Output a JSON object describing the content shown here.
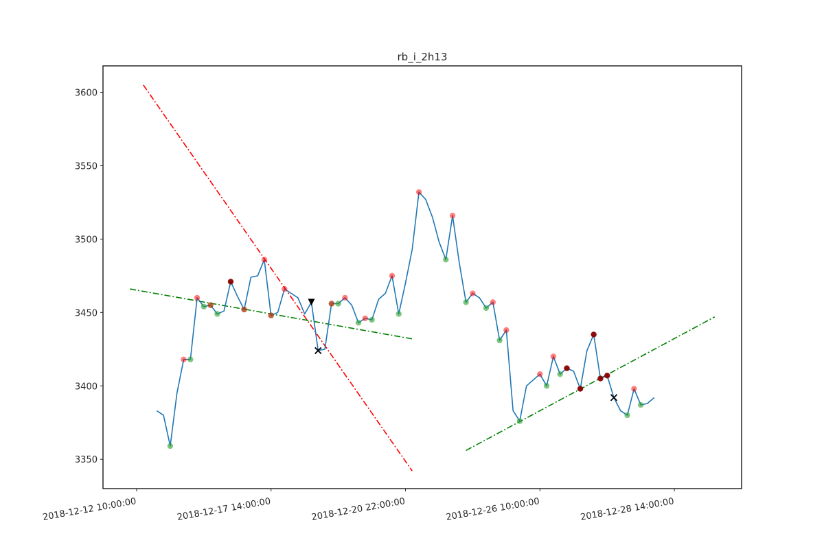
{
  "chart_data": {
    "type": "line",
    "title": "rb_i_2h13",
    "xlabel": "",
    "ylabel": "",
    "x_index_range": [
      -5.0,
      90.0
    ],
    "ylim": [
      3330,
      3618
    ],
    "grid": false,
    "x_ticks": [
      {
        "index": 0,
        "label": "2018-12-12 10:00:00"
      },
      {
        "index": 20,
        "label": "2018-12-17 14:00:00"
      },
      {
        "index": 40,
        "label": "2018-12-20 22:00:00"
      },
      {
        "index": 60,
        "label": "2018-12-26 10:00:00"
      },
      {
        "index": 80,
        "label": "2018-12-28 14:00:00"
      }
    ],
    "y_ticks": [
      3350,
      3400,
      3450,
      3500,
      3550,
      3600
    ],
    "series": [
      {
        "style": "line",
        "color": "#1f77b4",
        "points": [
          [
            3.0,
            3383
          ],
          [
            4.0,
            3380
          ],
          [
            5.0,
            3359
          ],
          [
            6.0,
            3395
          ],
          [
            7.0,
            3418
          ],
          [
            8.0,
            3418
          ],
          [
            9.0,
            3460
          ],
          [
            10.0,
            3454
          ],
          [
            11.0,
            3455
          ],
          [
            12.0,
            3449
          ],
          [
            13.0,
            3451
          ],
          [
            14.0,
            3471
          ],
          [
            15.0,
            3461
          ],
          [
            16.0,
            3452
          ],
          [
            17.0,
            3474
          ],
          [
            18.0,
            3475
          ],
          [
            19.0,
            3486
          ],
          [
            20.0,
            3448
          ],
          [
            21.0,
            3450
          ],
          [
            22.0,
            3466
          ],
          [
            23.0,
            3463
          ],
          [
            24.0,
            3460
          ],
          [
            25.0,
            3449
          ],
          [
            26.0,
            3457
          ],
          [
            27.0,
            3424
          ],
          [
            28.0,
            3425
          ],
          [
            29.0,
            3456
          ],
          [
            30.0,
            3456
          ],
          [
            31.0,
            3460
          ],
          [
            32.0,
            3455
          ],
          [
            33.0,
            3443
          ],
          [
            34.0,
            3446
          ],
          [
            35.0,
            3445
          ],
          [
            36.0,
            3459
          ],
          [
            37.0,
            3463
          ],
          [
            38.0,
            3475
          ],
          [
            39.0,
            3449
          ],
          [
            40.0,
            3470
          ],
          [
            41.0,
            3493
          ],
          [
            42.0,
            3532
          ],
          [
            43.0,
            3527
          ],
          [
            44.0,
            3515
          ],
          [
            45.0,
            3498
          ],
          [
            46.0,
            3486
          ],
          [
            47.0,
            3516
          ],
          [
            48.0,
            3484
          ],
          [
            49.0,
            3457
          ],
          [
            50.0,
            3463
          ],
          [
            51.0,
            3460
          ],
          [
            52.0,
            3453
          ],
          [
            53.0,
            3457
          ],
          [
            54.0,
            3431
          ],
          [
            55.0,
            3438
          ],
          [
            56.0,
            3383
          ],
          [
            57.0,
            3376
          ],
          [
            58.0,
            3400
          ],
          [
            59.0,
            3404
          ],
          [
            60.0,
            3408
          ],
          [
            61.0,
            3400
          ],
          [
            62.0,
            3420
          ],
          [
            63.0,
            3408
          ],
          [
            64.0,
            3412
          ],
          [
            65.0,
            3410
          ],
          [
            66.0,
            3398
          ],
          [
            67.0,
            3424
          ],
          [
            68.0,
            3435
          ],
          [
            69.0,
            3405
          ],
          [
            70.0,
            3407
          ],
          [
            71.0,
            3392
          ],
          [
            72.0,
            3383
          ],
          [
            73.0,
            3380
          ],
          [
            74.0,
            3398
          ],
          [
            75.0,
            3387
          ],
          [
            76.0,
            3388
          ],
          [
            77.0,
            3392
          ]
        ]
      }
    ],
    "markers": [
      {
        "kind": "dot",
        "color": "#2ca02c",
        "alpha": 0.6,
        "points": [
          [
            5.0,
            3359
          ],
          [
            8.0,
            3418
          ],
          [
            10.0,
            3454
          ],
          [
            11.0,
            3455
          ],
          [
            12.0,
            3449
          ],
          [
            16.0,
            3452
          ],
          [
            20.0,
            3448
          ],
          [
            29.0,
            3456
          ],
          [
            30.0,
            3456
          ],
          [
            33.0,
            3443
          ],
          [
            35.0,
            3445
          ],
          [
            39.0,
            3449
          ],
          [
            46.0,
            3486
          ],
          [
            49.0,
            3457
          ],
          [
            52.0,
            3453
          ],
          [
            54.0,
            3431
          ],
          [
            57.0,
            3376
          ],
          [
            61.0,
            3400
          ],
          [
            63.0,
            3408
          ],
          [
            73.0,
            3380
          ],
          [
            75.0,
            3387
          ]
        ]
      },
      {
        "kind": "dot",
        "color": "#ff0000",
        "alpha": 0.5,
        "points": [
          [
            7.0,
            3418
          ],
          [
            9.0,
            3460
          ],
          [
            11.0,
            3455
          ],
          [
            16.0,
            3452
          ],
          [
            19.0,
            3486
          ],
          [
            20.0,
            3448
          ],
          [
            22.0,
            3466
          ],
          [
            29.0,
            3456
          ],
          [
            31.0,
            3460
          ],
          [
            34.0,
            3446
          ],
          [
            38.0,
            3475
          ],
          [
            42.0,
            3532
          ],
          [
            47.0,
            3516
          ],
          [
            50.0,
            3463
          ],
          [
            53.0,
            3457
          ],
          [
            55.0,
            3438
          ],
          [
            60.0,
            3408
          ],
          [
            62.0,
            3420
          ],
          [
            74.0,
            3398
          ]
        ]
      },
      {
        "kind": "dot",
        "color": "#8b0000",
        "alpha": 0.95,
        "points": [
          [
            14.0,
            3471
          ],
          [
            64.0,
            3412
          ],
          [
            66.0,
            3398
          ],
          [
            68.0,
            3435
          ],
          [
            69.0,
            3405
          ],
          [
            70.0,
            3407
          ]
        ]
      },
      {
        "kind": "triangle_down",
        "color": "#000000",
        "alpha": 1,
        "points": [
          [
            26.0,
            3457
          ]
        ]
      },
      {
        "kind": "cross",
        "color": "#000000",
        "alpha": 1,
        "points": [
          [
            27.0,
            3424
          ],
          [
            71.0,
            3392
          ]
        ]
      }
    ],
    "trendlines": [
      {
        "color": "#ff0000",
        "dash": "dashdot",
        "points": [
          [
            1.0,
            3605
          ],
          [
            41.0,
            3342
          ]
        ]
      },
      {
        "color": "#008000",
        "dash": "dashdot",
        "points": [
          [
            -1.0,
            3466
          ],
          [
            41.0,
            3432
          ]
        ]
      },
      {
        "color": "#008000",
        "dash": "dashdot",
        "points": [
          [
            49.0,
            3356
          ],
          [
            86.0,
            3447
          ]
        ]
      }
    ]
  }
}
